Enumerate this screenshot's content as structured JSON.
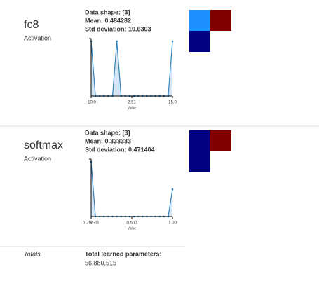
{
  "layers": [
    {
      "name": "fc8",
      "type": "Activation",
      "stats": [
        "Data shape: [3]",
        "Mean: 0.484282",
        "Std deviation: 10.6303"
      ],
      "histogram": {
        "values": [
          1,
          0,
          0,
          0,
          0,
          0,
          1,
          0,
          0,
          0,
          0,
          0,
          0,
          0,
          0,
          0,
          0,
          0,
          0,
          1
        ],
        "ylim": [
          0,
          1.05
        ],
        "xtick_labels": [
          "-10.0",
          "2.51",
          "15.0"
        ],
        "xlabel": "Value",
        "color": "#3182bd",
        "fill": "#c6dbef"
      },
      "heatmap": [
        [
          "#1e90ff",
          "#800000"
        ],
        [
          "#000080",
          null
        ]
      ]
    },
    {
      "name": "softmax",
      "type": "Activation",
      "stats": [
        "Data shape: [3]",
        "Mean: 0.333333",
        "Std deviation: 0.471404"
      ],
      "histogram": {
        "values": [
          2,
          0,
          0,
          0,
          0,
          0,
          0,
          0,
          0,
          0,
          0,
          0,
          0,
          0,
          0,
          0,
          0,
          0,
          0,
          1
        ],
        "ylim": [
          0,
          2.1
        ],
        "xtick_labels": [
          "1.29e-11",
          "0.500",
          "1.00"
        ],
        "xlabel": "Value",
        "color": "#3182bd",
        "fill": "#c6dbef"
      },
      "heatmap": [
        [
          "#000080",
          "#800000"
        ],
        [
          "#000080",
          null
        ]
      ]
    }
  ],
  "totals": {
    "label": "Totals",
    "title": "Total learned parameters:",
    "value": "56,880,515"
  }
}
